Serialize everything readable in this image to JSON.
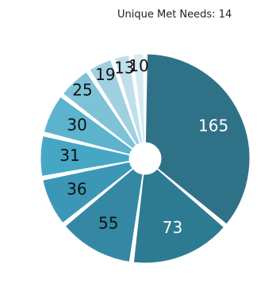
{
  "chart_data": {
    "type": "pie",
    "title": "Unique Met Needs: 14",
    "categories": [
      "165",
      "73",
      "55",
      "36",
      "31",
      "30",
      "25",
      "19",
      "13",
      "10"
    ],
    "values": [
      165,
      73,
      55,
      36,
      31,
      30,
      25,
      19,
      13,
      10
    ],
    "colors": [
      "#2f7288",
      "#2d7b93",
      "#3488a4",
      "#3c97b7",
      "#46a7c5",
      "#5db3cd",
      "#7ec2d7",
      "#9fd0e0",
      "#bfdfea",
      "#d6eaf2"
    ],
    "label_colors": [
      "#ffffff",
      "#ffffff",
      "#111111",
      "#111111",
      "#111111",
      "#111111",
      "#111111",
      "#111111",
      "#111111",
      "#111111"
    ]
  }
}
